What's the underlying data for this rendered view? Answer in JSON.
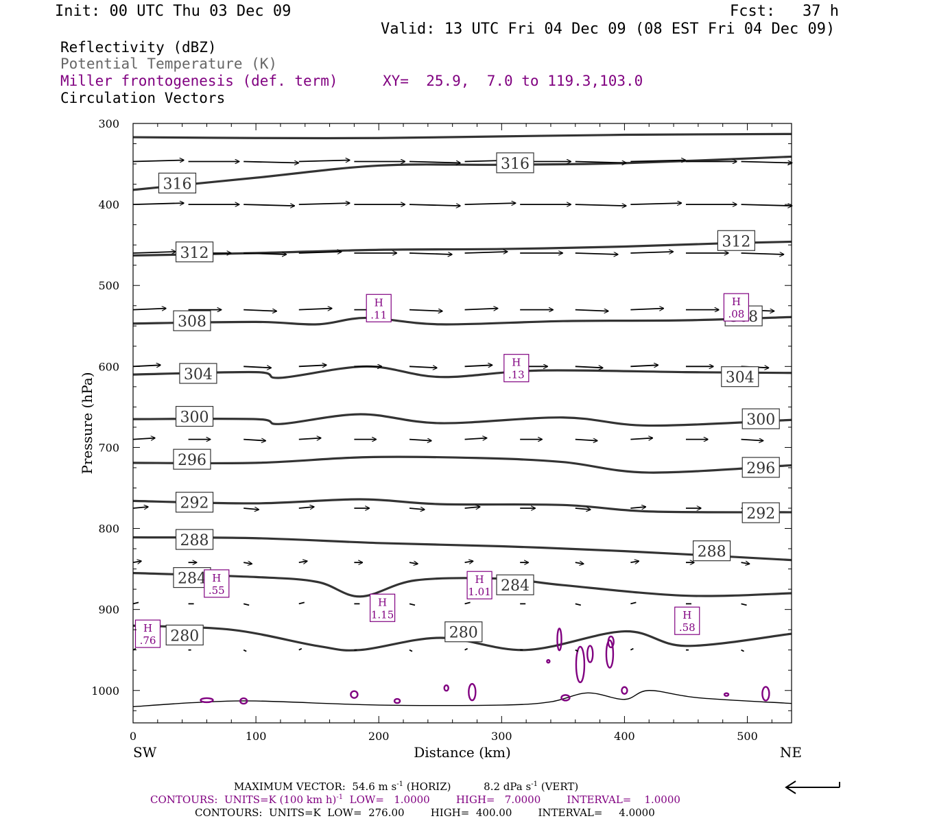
{
  "header": {
    "init": "Init: 00 UTC Thu 03 Dec 09",
    "fcst": "Fcst:   37 h",
    "valid": "Valid: 13 UTC Fri 04 Dec 09 (08 EST Fri 04 Dec 09)"
  },
  "legend": {
    "reflectivity": "Reflectivity (dBZ)",
    "theta": "Potential Temperature (K)",
    "frontogenesis": "Miller frontogenesis (def. term)",
    "xy": "XY=  25.9,  7.0 to 119.3,103.0",
    "vectors": "Circulation Vectors"
  },
  "colors": {
    "theta": "#333333",
    "frontogenesis": "#800080",
    "vectors": "#000000"
  },
  "footer": {
    "max_vector_pre": "MAXIMUM VECTOR:  54.6 m s",
    "max_vector_sup1": "-1",
    "max_vector_mid": " (HORIZ)          8.2 dPa s",
    "max_vector_sup2": "-1",
    "max_vector_post": " (VERT)",
    "contours_fg_pre": "CONTOURS:  UNITS=K (100 km h)",
    "contours_fg_sup": "-1",
    "contours_fg_post": "  LOW=   1.0000        HIGH=   7.0000        INTERVAL=    1.0000",
    "contours_theta": "CONTOURS:  UNITS=K  LOW=  276.00        HIGH=  400.00        INTERVAL=     4.0000",
    "reference_arrow": "reference-vector-arrow"
  },
  "chart_data": {
    "type": "line",
    "xlabel": "Distance (km)",
    "ylabel": "Pressure (hPa)",
    "x_ticks": [
      0,
      100,
      200,
      300,
      400,
      500
    ],
    "y_ticks": [
      300,
      400,
      500,
      600,
      700,
      800,
      900,
      1000
    ],
    "xlim": [
      0,
      536
    ],
    "ylim": [
      1040,
      300
    ],
    "left_end_label": "SW",
    "right_end_label": "NE",
    "theta_contours": [
      {
        "value": 316,
        "x": [
          0,
          100,
          200,
          300,
          400,
          536
        ],
        "p": [
          317,
          318,
          318,
          316,
          314,
          313
        ]
      },
      {
        "value": 316,
        "x": [
          0,
          100,
          200,
          300,
          400,
          536
        ],
        "p": [
          382,
          367,
          352,
          351,
          349,
          341
        ]
      },
      {
        "value": 312,
        "x": [
          0,
          100,
          200,
          300,
          400,
          480,
          536
        ],
        "p": [
          463,
          460,
          456,
          455,
          452,
          448,
          446
        ]
      },
      {
        "value": 308,
        "x": [
          0,
          100,
          150,
          190,
          250,
          350,
          450,
          536
        ],
        "p": [
          547,
          545,
          548,
          540,
          548,
          544,
          543,
          539
        ]
      },
      {
        "value": 304,
        "x": [
          0,
          100,
          120,
          190,
          250,
          330,
          450,
          536
        ],
        "p": [
          610,
          607,
          614,
          600,
          613,
          605,
          607,
          608
        ]
      },
      {
        "value": 300,
        "x": [
          0,
          100,
          120,
          185,
          250,
          350,
          420,
          536
        ],
        "p": [
          665,
          665,
          671,
          659,
          670,
          663,
          673,
          666
        ]
      },
      {
        "value": 296,
        "x": [
          0,
          100,
          190,
          280,
          350,
          420,
          536
        ],
        "p": [
          719,
          719,
          712,
          713,
          718,
          731,
          722
        ]
      },
      {
        "value": 292,
        "x": [
          0,
          100,
          185,
          250,
          350,
          420,
          536
        ],
        "p": [
          766,
          769,
          764,
          770,
          771,
          779,
          780
        ]
      },
      {
        "value": 288,
        "x": [
          0,
          100,
          200,
          300,
          400,
          536
        ],
        "p": [
          811,
          812,
          818,
          822,
          828,
          839
        ]
      },
      {
        "value": 284,
        "x": [
          0,
          100,
          150,
          185,
          230,
          300,
          350,
          450,
          536
        ],
        "p": [
          855,
          860,
          866,
          884,
          864,
          862,
          870,
          883,
          880
        ]
      },
      {
        "value": 280,
        "x": [
          0,
          80,
          150,
          185,
          250,
          320,
          400,
          450,
          536
        ],
        "p": [
          920,
          925,
          945,
          950,
          935,
          950,
          927,
          945,
          930
        ]
      }
    ],
    "theta_labels": [
      {
        "text": "316",
        "x": 311,
        "p": 349
      },
      {
        "text": "316",
        "x": 36,
        "p": 374
      },
      {
        "text": "312",
        "x": 50,
        "p": 459
      },
      {
        "text": "312",
        "x": 491,
        "p": 445
      },
      {
        "text": "308",
        "x": 48,
        "p": 544
      },
      {
        "text": "308",
        "x": 497,
        "p": 538
      },
      {
        "text": "304",
        "x": 53,
        "p": 609
      },
      {
        "text": "304",
        "x": 494,
        "p": 613
      },
      {
        "text": "300",
        "x": 50,
        "p": 662
      },
      {
        "text": "300",
        "x": 511,
        "p": 665
      },
      {
        "text": "296",
        "x": 48,
        "p": 715
      },
      {
        "text": "296",
        "x": 511,
        "p": 725
      },
      {
        "text": "292",
        "x": 50,
        "p": 768
      },
      {
        "text": "292",
        "x": 511,
        "p": 781
      },
      {
        "text": "288",
        "x": 50,
        "p": 814
      },
      {
        "text": "288",
        "x": 471,
        "p": 828
      },
      {
        "text": "284",
        "x": 48,
        "p": 861
      },
      {
        "text": "284",
        "x": 311,
        "p": 870
      },
      {
        "text": "280",
        "x": 42,
        "p": 932
      },
      {
        "text": "280",
        "x": 269,
        "p": 928
      }
    ],
    "frontogenesis_maxima": [
      {
        "label": "H",
        "value": ".11",
        "x": 200,
        "p": 528
      },
      {
        "label": "H",
        "value": ".08",
        "x": 491,
        "p": 527
      },
      {
        "label": "H",
        "value": ".13",
        "x": 312,
        "p": 602
      },
      {
        "label": "H",
        "value": ".55",
        "x": 68,
        "p": 868
      },
      {
        "label": "H",
        "value": "1.01",
        "x": 282,
        "p": 870
      },
      {
        "label": "H",
        "value": "1.15",
        "x": 203,
        "p": 898
      },
      {
        "label": "H",
        "value": ".58",
        "x": 451,
        "p": 914
      },
      {
        "label": "H",
        "value": ".76",
        "x": 12,
        "p": 930
      }
    ],
    "circulation_vector_rows": [
      {
        "p": 347,
        "u": [
          37,
          37,
          40,
          37,
          37,
          37,
          37,
          37,
          37,
          40,
          37,
          37
        ]
      },
      {
        "p": 400,
        "u": [
          37,
          37,
          37,
          37,
          37,
          37,
          37,
          37,
          37,
          37,
          37,
          37
        ]
      },
      {
        "p": 460,
        "u": [
          31,
          31,
          31,
          31,
          31,
          31,
          31,
          31,
          31,
          31,
          31,
          31
        ]
      },
      {
        "p": 530,
        "u": [
          24,
          24,
          24,
          24,
          24,
          24,
          24,
          24,
          24,
          24,
          24,
          24
        ]
      },
      {
        "p": 600,
        "u": [
          20,
          20,
          20,
          20,
          20,
          20,
          20,
          20,
          20,
          20,
          20,
          20
        ]
      },
      {
        "p": 690,
        "u": [
          16,
          16,
          16,
          16,
          16,
          16,
          16,
          16,
          16,
          16,
          16,
          16
        ]
      },
      {
        "p": 775,
        "u": [
          11,
          11,
          11,
          11,
          11,
          11,
          11,
          11,
          11,
          11,
          11,
          11
        ]
      },
      {
        "p": 842,
        "u": [
          6,
          6,
          6,
          6,
          6,
          6,
          6,
          6,
          6,
          6,
          6,
          6
        ]
      },
      {
        "p": 893,
        "u": [
          4,
          4,
          4,
          4,
          4,
          4,
          4,
          4,
          4,
          4,
          4,
          4
        ]
      },
      {
        "p": 950,
        "u": [
          2,
          2,
          2,
          2,
          2,
          2,
          2,
          2,
          2,
          2,
          2,
          2
        ]
      }
    ],
    "surface": {
      "x": [
        0,
        50,
        100,
        200,
        300,
        340,
        370,
        400,
        420,
        460,
        536
      ],
      "p": [
        1020,
        1015,
        1013,
        1018,
        1018,
        1014,
        1003,
        1011,
        1000,
        1009,
        1016
      ]
    }
  }
}
